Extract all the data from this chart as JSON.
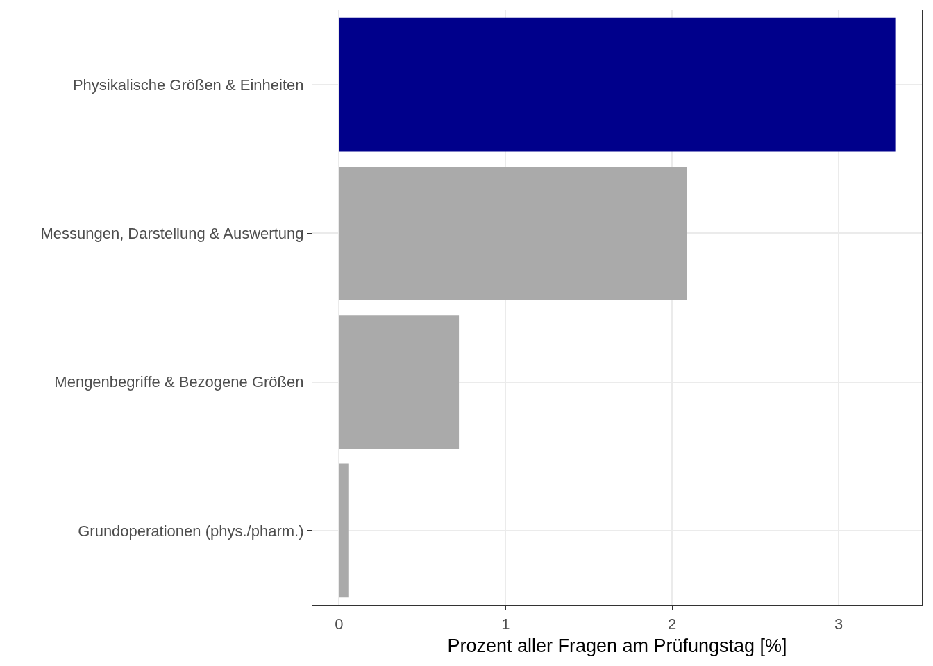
{
  "chart_data": {
    "type": "bar",
    "orientation": "horizontal",
    "xlabel": "Prozent aller Fragen am Prüfungstag [%]",
    "categories": [
      "Physikalische Größen & Einheiten",
      "Messungen, Darstellung & Auswertung",
      "Mengenbegriffe & Bezogene Größen",
      "Grundoperationen (phys./pharm.)"
    ],
    "values": [
      3.34,
      2.09,
      0.72,
      0.06
    ],
    "colors": [
      "#00008b",
      "#aaaaaa",
      "#aaaaaa",
      "#aaaaaa"
    ],
    "xlim": [
      -0.16,
      3.5
    ],
    "xticks": [
      0,
      1,
      2,
      3
    ],
    "grid": true
  }
}
